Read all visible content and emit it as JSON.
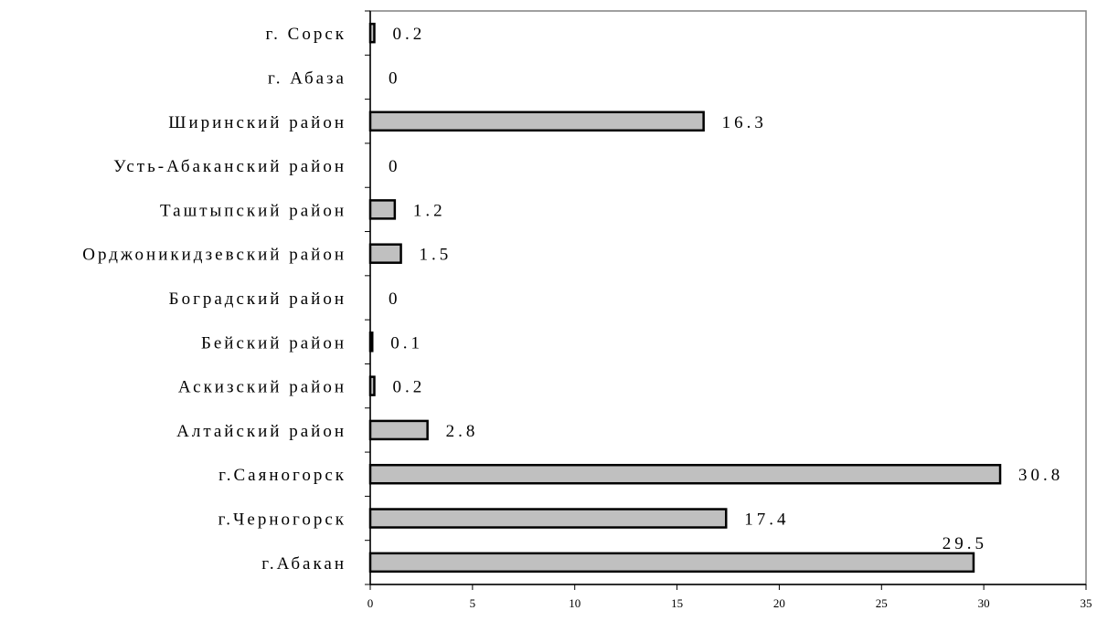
{
  "chart_data": {
    "type": "bar",
    "orientation": "horizontal",
    "categories": [
      "г. Сорск",
      "г. Абаза",
      "Ширинский район",
      "Усть-Абаканский район",
      "Таштыпский район",
      "Орджоникидзевский район",
      "Боградский район",
      "Бейский район",
      "Аскизский район",
      "Алтайский район",
      "г.Саяногорск",
      "г.Черногорск",
      "г.Абакан"
    ],
    "values": [
      0.2,
      0,
      16.3,
      0,
      1.2,
      1.5,
      0,
      0.1,
      0.2,
      2.8,
      30.8,
      17.4,
      29.5
    ],
    "data_labels": [
      "0.2",
      "0",
      "16.3",
      "0",
      "1.2",
      "1.5",
      "0",
      "0.1",
      "0.2",
      "2.8",
      "30.8",
      "17.4",
      "29.5"
    ],
    "xlim": [
      0,
      35
    ],
    "xticks": [
      "0",
      "5",
      "10",
      "15",
      "20",
      "25",
      "30",
      "35"
    ],
    "title": "",
    "xlabel": "",
    "ylabel": "",
    "grid": false,
    "legend": "none",
    "bar_color": "#c0c0c0",
    "bar_edge_color": "#000000",
    "frame_color": "#808080"
  }
}
